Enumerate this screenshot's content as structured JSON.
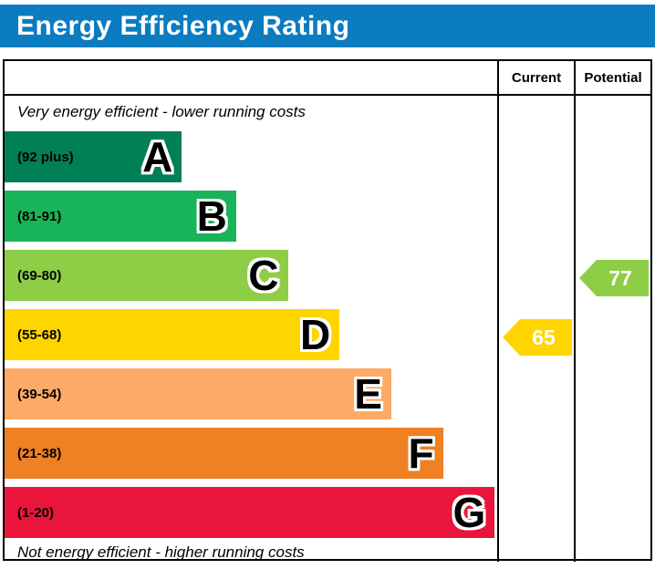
{
  "title": "Energy Efficiency Rating",
  "columns": {
    "current": "Current",
    "potential": "Potential"
  },
  "notes": {
    "top": "Very energy efficient - lower running costs",
    "bottom": "Not energy efficient - higher running costs"
  },
  "colors": {
    "header_blue": "#0b7cc0"
  },
  "chart_data": {
    "type": "bar",
    "subtype": "epc-energy-efficiency-rating",
    "bands": [
      {
        "letter": "A",
        "range": "(92 plus)",
        "color": "#008054",
        "width_pct": 36
      },
      {
        "letter": "B",
        "range": "(81-91)",
        "color": "#19b459",
        "width_pct": 47
      },
      {
        "letter": "C",
        "range": "(69-80)",
        "color": "#8dce46",
        "width_pct": 57.5
      },
      {
        "letter": "D",
        "range": "(55-68)",
        "color": "#ffd500",
        "width_pct": 68
      },
      {
        "letter": "E",
        "range": "(39-54)",
        "color": "#fcaa65",
        "width_pct": 78.5
      },
      {
        "letter": "F",
        "range": "(21-38)",
        "color": "#ef8023",
        "width_pct": 89
      },
      {
        "letter": "G",
        "range": "(1-20)",
        "color": "#e9153b",
        "width_pct": 99.5
      }
    ],
    "current": {
      "value": 65,
      "band": "D",
      "color": "#ffd500"
    },
    "potential": {
      "value": 77,
      "band": "C",
      "color": "#8dce46"
    }
  }
}
